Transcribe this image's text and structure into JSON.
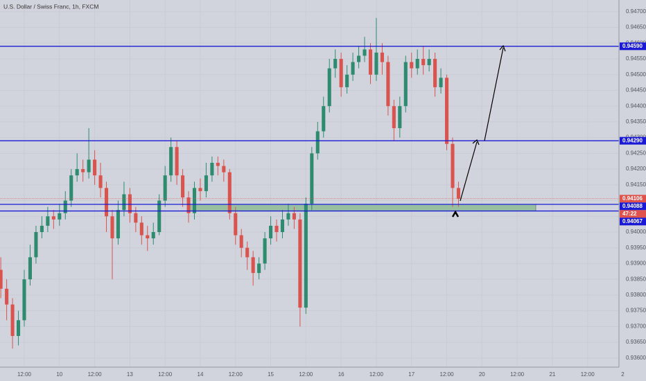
{
  "chart_data": {
    "type": "candlestick",
    "title": "U.S. Dollar / Swiss Franc, 1h, FXCM",
    "x": [
      -8,
      -6,
      -4,
      -2,
      0,
      2,
      4,
      6,
      8,
      10,
      12,
      14,
      16,
      18,
      20,
      22,
      24,
      26,
      28,
      30,
      32,
      34,
      36,
      38,
      40,
      42,
      44,
      46,
      48,
      50,
      52,
      54,
      56,
      58,
      60,
      62,
      64,
      66,
      68,
      70,
      72,
      74,
      76,
      78,
      80,
      82,
      84,
      86,
      88,
      90,
      92,
      94,
      96,
      98,
      100,
      102,
      104,
      106,
      108,
      110,
      112,
      114,
      116,
      118,
      120,
      122,
      124,
      126,
      128,
      130,
      132,
      134,
      136,
      138,
      140,
      142,
      144,
      146,
      148
    ],
    "open": [
      0.9388,
      0.9382,
      0.9377,
      0.9367,
      0.9372,
      0.9385,
      0.9392,
      0.94,
      0.9402,
      0.9405,
      0.9404,
      0.9406,
      0.941,
      0.9418,
      0.942,
      0.9419,
      0.9423,
      0.9418,
      0.9414,
      0.9405,
      0.9398,
      0.9407,
      0.9412,
      0.9406,
      0.9403,
      0.9399,
      0.9398,
      0.94,
      0.941,
      0.9418,
      0.9427,
      0.9418,
      0.9411,
      0.9406,
      0.9414,
      0.9413,
      0.9418,
      0.9422,
      0.9421,
      0.9419,
      0.9406,
      0.9399,
      0.9395,
      0.9392,
      0.9387,
      0.939,
      0.9398,
      0.9402,
      0.94,
      0.9404,
      0.9406,
      0.9404,
      0.9376,
      0.9409,
      0.9425,
      0.9432,
      0.944,
      0.9452,
      0.9455,
      0.9446,
      0.945,
      0.9454,
      0.9456,
      0.9458,
      0.945,
      0.9457,
      0.9454,
      0.944,
      0.9433,
      0.944,
      0.9454,
      0.9452,
      0.9455,
      0.9453,
      0.9455,
      0.9446,
      0.9449,
      0.9428,
      0.9414
    ],
    "high": [
      0.9392,
      0.9385,
      0.9379,
      0.9375,
      0.9388,
      0.9396,
      0.9402,
      0.9405,
      0.9408,
      0.9407,
      0.9409,
      0.9413,
      0.942,
      0.9425,
      0.9423,
      0.9433,
      0.9426,
      0.9422,
      0.9416,
      0.9407,
      0.941,
      0.9416,
      0.9414,
      0.9408,
      0.9405,
      0.9402,
      0.9403,
      0.9412,
      0.9421,
      0.943,
      0.9429,
      0.942,
      0.9413,
      0.9416,
      0.9417,
      0.9422,
      0.9424,
      0.9424,
      0.9423,
      0.942,
      0.9408,
      0.9401,
      0.9397,
      0.9394,
      0.9392,
      0.94,
      0.9405,
      0.9404,
      0.9407,
      0.9409,
      0.9408,
      0.9406,
      0.9411,
      0.9427,
      0.9435,
      0.9443,
      0.9455,
      0.9458,
      0.9457,
      0.9453,
      0.9457,
      0.9459,
      0.9462,
      0.946,
      0.9468,
      0.946,
      0.9456,
      0.9442,
      0.9443,
      0.9456,
      0.9457,
      0.9458,
      0.9459,
      0.9458,
      0.9457,
      0.9452,
      0.945,
      0.943,
      0.9416
    ],
    "low": [
      0.9379,
      0.9372,
      0.9363,
      0.9364,
      0.937,
      0.9383,
      0.939,
      0.9398,
      0.94,
      0.9401,
      0.9402,
      0.9404,
      0.9408,
      0.9416,
      0.9416,
      0.9417,
      0.9415,
      0.9411,
      0.94,
      0.9385,
      0.9396,
      0.9405,
      0.9403,
      0.94,
      0.9396,
      0.9394,
      0.9396,
      0.9399,
      0.9408,
      0.9416,
      0.9415,
      0.9408,
      0.9403,
      0.9404,
      0.941,
      0.9411,
      0.9416,
      0.9418,
      0.9416,
      0.9404,
      0.9396,
      0.9392,
      0.9388,
      0.9383,
      0.9385,
      0.9388,
      0.9396,
      0.9397,
      0.9398,
      0.9402,
      0.9401,
      0.937,
      0.9374,
      0.9407,
      0.9423,
      0.943,
      0.9438,
      0.9449,
      0.9443,
      0.9444,
      0.9448,
      0.9452,
      0.9454,
      0.9447,
      0.9448,
      0.945,
      0.9437,
      0.9429,
      0.943,
      0.9438,
      0.9449,
      0.945,
      0.945,
      0.9451,
      0.9443,
      0.9444,
      0.9426,
      0.9408,
      0.9408
    ],
    "close": [
      0.9382,
      0.9377,
      0.9367,
      0.9372,
      0.9385,
      0.9392,
      0.94,
      0.9402,
      0.9405,
      0.9404,
      0.9406,
      0.941,
      0.9418,
      0.942,
      0.9419,
      0.9423,
      0.9418,
      0.9414,
      0.9405,
      0.9398,
      0.9407,
      0.9412,
      0.9406,
      0.9403,
      0.9399,
      0.9398,
      0.94,
      0.941,
      0.9418,
      0.9427,
      0.9418,
      0.9411,
      0.9406,
      0.9414,
      0.9413,
      0.9418,
      0.9422,
      0.9421,
      0.9419,
      0.9406,
      0.9399,
      0.9395,
      0.9392,
      0.9387,
      0.939,
      0.9398,
      0.9402,
      0.94,
      0.9404,
      0.9406,
      0.9404,
      0.9376,
      0.9409,
      0.9425,
      0.9432,
      0.944,
      0.9452,
      0.9455,
      0.9446,
      0.945,
      0.9454,
      0.9456,
      0.9458,
      0.945,
      0.9457,
      0.9454,
      0.944,
      0.9433,
      0.944,
      0.9454,
      0.9452,
      0.9455,
      0.9453,
      0.9455,
      0.9446,
      0.9449,
      0.9428,
      0.9414,
      0.94106
    ],
    "up_color": "#2e8b6f",
    "down_color": "#d9534f",
    "xlim": [
      -8.27,
      202.7
    ],
    "ylim": [
      0.93571,
      0.94737
    ],
    "xticks": [
      {
        "value": 0,
        "label": "12:00"
      },
      {
        "value": 12,
        "label": "10"
      },
      {
        "value": 24,
        "label": "12:00"
      },
      {
        "value": 36,
        "label": "13"
      },
      {
        "value": 48,
        "label": "12:00"
      },
      {
        "value": 60,
        "label": "14"
      },
      {
        "value": 72,
        "label": "12:00"
      },
      {
        "value": 84,
        "label": "15"
      },
      {
        "value": 96,
        "label": "12:00"
      },
      {
        "value": 108,
        "label": "16"
      },
      {
        "value": 120,
        "label": "12:00"
      },
      {
        "value": 132,
        "label": "17"
      },
      {
        "value": 144,
        "label": "12:00"
      },
      {
        "value": 156,
        "label": "20"
      },
      {
        "value": 168,
        "label": "12:00"
      },
      {
        "value": 180,
        "label": "21"
      },
      {
        "value": 192,
        "label": "12:00"
      },
      {
        "value": 204,
        "label": "2"
      }
    ],
    "yticks": [
      {
        "value": 0.936,
        "label": "0.93600"
      },
      {
        "value": 0.9365,
        "label": "0.93650"
      },
      {
        "value": 0.937,
        "label": "0.93700"
      },
      {
        "value": 0.9375,
        "label": "0.93750"
      },
      {
        "value": 0.938,
        "label": "0.93800"
      },
      {
        "value": 0.9385,
        "label": "0.93850"
      },
      {
        "value": 0.939,
        "label": "0.93900"
      },
      {
        "value": 0.9395,
        "label": "0.93950"
      },
      {
        "value": 0.94,
        "label": "0.94000"
      },
      {
        "value": 0.9405,
        "label": "0.94050"
      },
      {
        "value": 0.941,
        "label": "0.94100"
      },
      {
        "value": 0.9415,
        "label": "0.94150"
      },
      {
        "value": 0.942,
        "label": "0.94200"
      },
      {
        "value": 0.9425,
        "label": "0.94250"
      },
      {
        "value": 0.943,
        "label": "0.94300"
      },
      {
        "value": 0.9435,
        "label": "0.94350"
      },
      {
        "value": 0.944,
        "label": "0.94400"
      },
      {
        "value": 0.9445,
        "label": "0.94450"
      },
      {
        "value": 0.945,
        "label": "0.94500"
      },
      {
        "value": 0.9455,
        "label": "0.94550"
      },
      {
        "value": 0.946,
        "label": "0.94600"
      },
      {
        "value": 0.9465,
        "label": "0.94650"
      },
      {
        "value": 0.947,
        "label": "0.94700"
      }
    ],
    "grid": true,
    "level_color": "#1a1ad6",
    "levels": [
      {
        "value": 0.9459,
        "label": "0.94590"
      },
      {
        "value": 0.9429,
        "label": "0.94290"
      },
      {
        "value": 0.94088,
        "label": "0.94088"
      },
      {
        "value": 0.94067,
        "label": "0.94067"
      }
    ],
    "zone_color": "#98bfa0",
    "last_price": {
      "value": 0.94106,
      "label": "0.94106"
    },
    "last_price_color": "#e0524c",
    "countdown": "47:22"
  }
}
